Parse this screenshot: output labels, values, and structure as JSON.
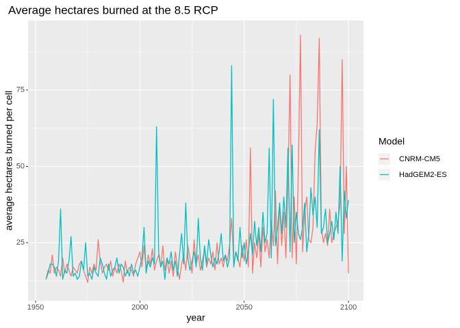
{
  "chart_data": {
    "type": "line",
    "title": "Average hectares burned at the 8.5 RCP",
    "x_label": "year",
    "y_label": "average hectares burned per cell",
    "legend_title": "Model",
    "legend_position": "right",
    "grid": true,
    "xlim": [
      1946.4,
      2107.2
    ],
    "ylim": [
      6,
      97.8
    ],
    "xticks": [
      1950,
      2000,
      2050,
      2100
    ],
    "yticks": [
      25,
      50,
      75
    ],
    "x_minor_ticks": [
      1975,
      2025,
      2075
    ],
    "y_minor_ticks": [
      12.5,
      37.5,
      62.5,
      87.5
    ],
    "x": [
      1955,
      1956,
      1957,
      1958,
      1959,
      1960,
      1961,
      1962,
      1963,
      1964,
      1965,
      1966,
      1967,
      1968,
      1969,
      1970,
      1971,
      1972,
      1973,
      1974,
      1975,
      1976,
      1977,
      1978,
      1979,
      1980,
      1981,
      1982,
      1983,
      1984,
      1985,
      1986,
      1987,
      1988,
      1989,
      1990,
      1991,
      1992,
      1993,
      1994,
      1995,
      1996,
      1997,
      1998,
      1999,
      2000,
      2001,
      2002,
      2003,
      2004,
      2005,
      2006,
      2007,
      2008,
      2009,
      2010,
      2011,
      2012,
      2013,
      2014,
      2015,
      2016,
      2017,
      2018,
      2019,
      2020,
      2021,
      2022,
      2023,
      2024,
      2025,
      2026,
      2027,
      2028,
      2029,
      2030,
      2031,
      2032,
      2033,
      2034,
      2035,
      2036,
      2037,
      2038,
      2039,
      2040,
      2041,
      2042,
      2043,
      2044,
      2045,
      2046,
      2047,
      2048,
      2049,
      2050,
      2051,
      2052,
      2053,
      2054,
      2055,
      2056,
      2057,
      2058,
      2059,
      2060,
      2061,
      2062,
      2063,
      2064,
      2065,
      2066,
      2067,
      2068,
      2069,
      2070,
      2071,
      2072,
      2073,
      2074,
      2075,
      2076,
      2077,
      2078,
      2079,
      2080,
      2081,
      2082,
      2083,
      2084,
      2085,
      2086,
      2087,
      2088,
      2089,
      2090,
      2091,
      2092,
      2093,
      2094,
      2095,
      2096,
      2097,
      2098,
      2099,
      2100
    ],
    "series": [
      {
        "name": "CNRM-CM5",
        "color": "#F8766D",
        "values": [
          13,
          16,
          15,
          21,
          15,
          17,
          16,
          14,
          20,
          15,
          18,
          16,
          14,
          17,
          16,
          15,
          18,
          19,
          16,
          14,
          12,
          17,
          15,
          18,
          16,
          26,
          19,
          15,
          17,
          18,
          16,
          19,
          14,
          17,
          15,
          18,
          16,
          12,
          19,
          15,
          17,
          16,
          14,
          18,
          20,
          22,
          17,
          24,
          16,
          21,
          18,
          23,
          16,
          19,
          21,
          17,
          24,
          16,
          20,
          15,
          19,
          14,
          22,
          17,
          13,
          18,
          21,
          16,
          24,
          20,
          15,
          26,
          18,
          21,
          16,
          19,
          23,
          17,
          20,
          18,
          22,
          16,
          25,
          18,
          20,
          17,
          21,
          19,
          24,
          33,
          18,
          22,
          20,
          17,
          24,
          19,
          26,
          17,
          56,
          15,
          25,
          20,
          28,
          17,
          30,
          22,
          26,
          20,
          32,
          24,
          42,
          18,
          38,
          24,
          35,
          20,
          45,
          80,
          20,
          40,
          18,
          50,
          93,
          22,
          35,
          40,
          26,
          25,
          30,
          55,
          64,
          92,
          30,
          25,
          28,
          24,
          36,
          25,
          28,
          30,
          32,
          38,
          85,
          28,
          50,
          15
        ]
      },
      {
        "name": "HadGEM2-ES",
        "color": "#00BFC4",
        "values": [
          13,
          15,
          18,
          18,
          17,
          14,
          19,
          36,
          13,
          16,
          15,
          19,
          27,
          14,
          15,
          13,
          14,
          19,
          16,
          25,
          14,
          15,
          13,
          17,
          15,
          14,
          20,
          18,
          15,
          13,
          18,
          14,
          16,
          17,
          20,
          15,
          18,
          17,
          14,
          16,
          14,
          18,
          15,
          16,
          14,
          17,
          20,
          30,
          15,
          19,
          17,
          20,
          18,
          63,
          22,
          17,
          19,
          13,
          20,
          18,
          22,
          16,
          19,
          14,
          21,
          28,
          18,
          38,
          20,
          16,
          19,
          22,
          17,
          33,
          20,
          16,
          24,
          18,
          26,
          21,
          17,
          20,
          18,
          22,
          28,
          19,
          21,
          17,
          20,
          83,
          17,
          22,
          19,
          30,
          20,
          25,
          18,
          22,
          28,
          21,
          32,
          24,
          30,
          22,
          35,
          25,
          28,
          56,
          20,
          72,
          24,
          30,
          38,
          28,
          40,
          30,
          56,
          22,
          57,
          25,
          35,
          28,
          26,
          30,
          38,
          22,
          28,
          43,
          34,
          40,
          30,
          62,
          28,
          30,
          36,
          25,
          28,
          32,
          26,
          35,
          28,
          50,
          19,
          42,
          33,
          39
        ]
      }
    ]
  }
}
